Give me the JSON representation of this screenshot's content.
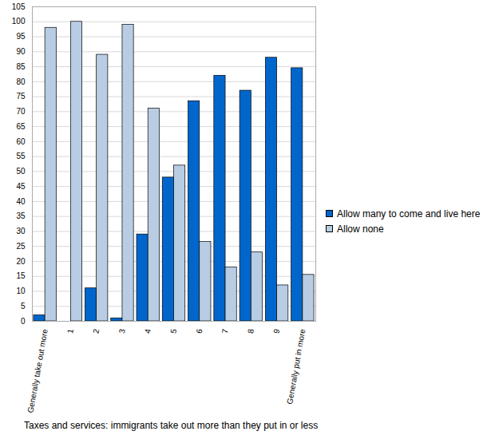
{
  "chart_data": {
    "type": "bar",
    "x_label": "Taxes and services: immigrants take out more than they put in or less",
    "categories": [
      "Generally take out more",
      "1",
      "2",
      "3",
      "4",
      "5",
      "6",
      "7",
      "8",
      "9",
      "Generally put in more"
    ],
    "series": [
      {
        "name": "Allow many to come and live here",
        "color": "#0066cc",
        "values": [
          2,
          0,
          11,
          1,
          29,
          48,
          73.5,
          82,
          77,
          88,
          84.5
        ]
      },
      {
        "name": "Allow none",
        "color": "#b8cce4",
        "values": [
          98,
          100,
          89,
          99,
          71,
          52,
          26.5,
          18,
          23,
          12,
          15.5
        ]
      }
    ],
    "ylim": [
      0,
      105
    ],
    "yticks": [
      0,
      5,
      10,
      15,
      20,
      25,
      30,
      35,
      40,
      45,
      50,
      55,
      60,
      65,
      70,
      75,
      80,
      85,
      90,
      95,
      100,
      105
    ],
    "grid": true,
    "legend": "right"
  }
}
